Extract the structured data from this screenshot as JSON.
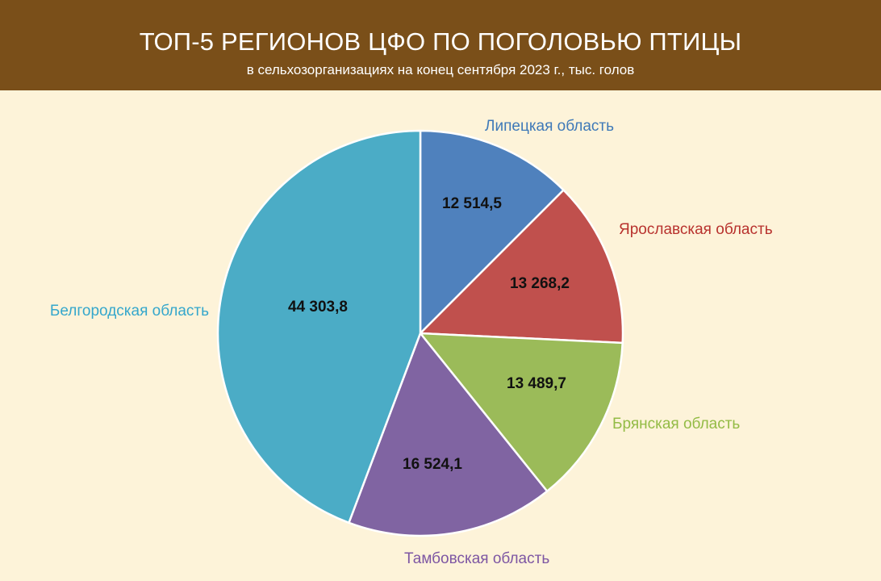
{
  "header": {
    "title": "ТОП-5 РЕГИОНОВ ЦФО ПО ПОГОЛОВЬЮ ПТИЦЫ",
    "subtitle": "в сельхозорганизациях на конец сентября 2023 г., тыс. голов"
  },
  "colors": {
    "header_bg": "#7a4f19",
    "background": "#fdf3d9"
  },
  "chart_data": {
    "type": "pie",
    "title": "ТОП-5 РЕГИОНОВ ЦФО ПО ПОГОЛОВЬЮ ПТИЦЫ",
    "subtitle": "в сельхозорганизациях на конец сентября 2023 г., тыс. голов",
    "start": "12 o'clock, clockwise",
    "slices": [
      {
        "name": "Липецкая область",
        "value": 12514.5,
        "label": "12 514,5",
        "color": "#4f81bd",
        "label_color": "#3f79b8"
      },
      {
        "name": "Ярославская область",
        "value": 13268.2,
        "label": "13 268,2",
        "color": "#c0504d",
        "label_color": "#b8322e"
      },
      {
        "name": "Брянская область",
        "value": 13489.7,
        "label": "13 489,7",
        "color": "#9bbb59",
        "label_color": "#93bb45"
      },
      {
        "name": "Тамбовская область",
        "value": 16524.1,
        "label": "16 524,1",
        "color": "#8064a2",
        "label_color": "#7d56a3"
      },
      {
        "name": "Белгородская область",
        "value": 44303.8,
        "label": "44 303,8",
        "color": "#4bacc6",
        "label_color": "#35a7cc"
      }
    ]
  }
}
